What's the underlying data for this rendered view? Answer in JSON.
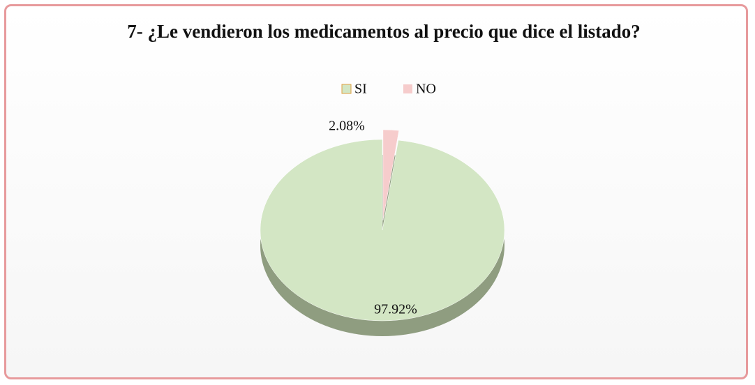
{
  "chart_data": {
    "type": "pie",
    "title": "7- ¿Le vendieron los medicamentos al precio que dice el listado?",
    "categories": [
      "SI",
      "NO"
    ],
    "values": [
      97.92,
      2.08
    ],
    "value_labels": [
      "97.92%",
      "2.08%"
    ],
    "colors": [
      "#d3e6c4",
      "#f6cccc"
    ],
    "legend": "top"
  }
}
